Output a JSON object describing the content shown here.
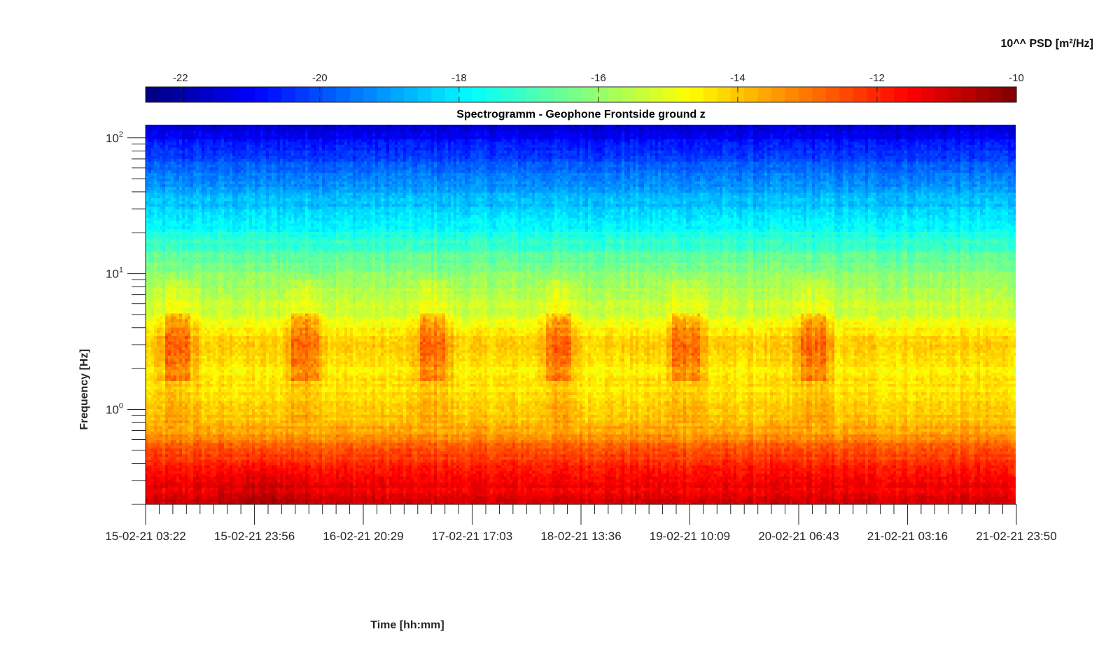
{
  "chart_data": {
    "type": "heatmap",
    "title": "Spectrogramm - Geophone Frontside ground z",
    "xlabel": "Time [hh:mm]",
    "ylabel": "Frequency [Hz]",
    "colorbar": {
      "label": "10^^ PSD [m²/Hz]",
      "orientation": "horizontal",
      "placement": "top",
      "range": [
        -22.5,
        -10
      ],
      "ticks": [
        -22,
        -20,
        -18,
        -16,
        -14,
        -12,
        -10
      ],
      "tick_labels": [
        "-22",
        "-20",
        "-18",
        "-16",
        "-14",
        "-12",
        "-10"
      ],
      "colormap": "jet"
    },
    "x_ticks": [
      "15-02-21 03:22",
      "15-02-21 23:56",
      "16-02-21 20:29",
      "17-02-21 17:03",
      "18-02-21 13:36",
      "19-02-21 10:09",
      "20-02-21 06:43",
      "21-02-21 03:16",
      "21-02-21 23:50"
    ],
    "xlim": [
      "15-02-21 03:22",
      "21-02-21 23:50"
    ],
    "y_scale": "log",
    "ylim": [
      0.2,
      125
    ],
    "y_ticks": [
      1,
      10,
      100
    ],
    "y_tick_labels": [
      {
        "base": "10",
        "exp": "0"
      },
      {
        "base": "10",
        "exp": "1"
      },
      {
        "base": "10",
        "exp": "2"
      }
    ],
    "grid": false,
    "summary_log10_psd_by_frequency": [
      {
        "freq": 0.2,
        "value": -11.0
      },
      {
        "freq": 0.3,
        "value": -11.6
      },
      {
        "freq": 0.5,
        "value": -12.5
      },
      {
        "freq": 0.7,
        "value": -13.6
      },
      {
        "freq": 1.0,
        "value": -14.2
      },
      {
        "freq": 2.0,
        "value": -14.5
      },
      {
        "freq": 3.0,
        "value": -13.9
      },
      {
        "freq": 5.0,
        "value": -15.2
      },
      {
        "freq": 10.0,
        "value": -16.0
      },
      {
        "freq": 20.0,
        "value": -17.6
      },
      {
        "freq": 50.0,
        "value": -19.3
      },
      {
        "freq": 100.0,
        "value": -21.0
      }
    ],
    "daytime_bursts_2_5Hz": [
      {
        "start": "15-02-21 07:00",
        "end": "15-02-21 12:00"
      },
      {
        "start": "16-02-21 07:00",
        "end": "16-02-21 12:00"
      },
      {
        "start": "17-02-21 07:00",
        "end": "17-02-21 12:00"
      },
      {
        "start": "18-02-21 07:00",
        "end": "18-02-21 12:00"
      },
      {
        "start": "19-02-21 07:00",
        "end": "19-02-21 12:00"
      },
      {
        "start": "20-02-21 07:00",
        "end": "20-02-21 12:00"
      }
    ]
  }
}
